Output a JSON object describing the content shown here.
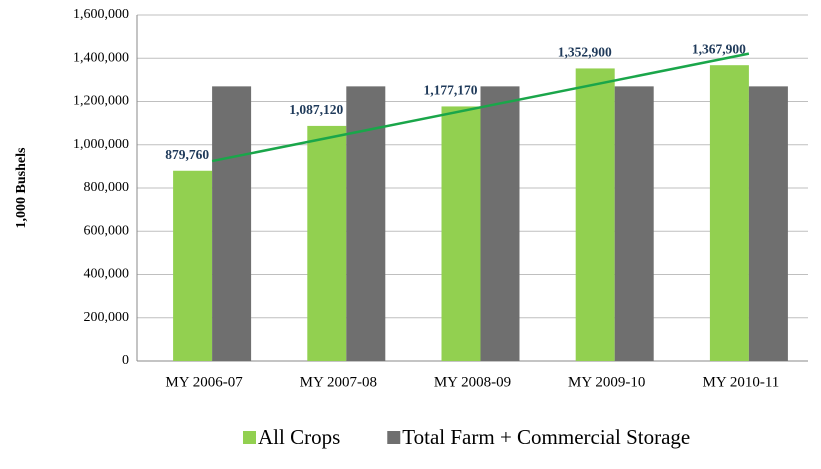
{
  "chart_data": {
    "type": "bar",
    "y_label": "1,000 Bushels",
    "categories": [
      "MY 2006-07",
      "MY 2007-08",
      "MY 2008-09",
      "MY 2009-10",
      "MY 2010-11"
    ],
    "series": [
      {
        "name": "All Crops",
        "color": "#92d050",
        "values": [
          879760,
          1087120,
          1177170,
          1352900,
          1367900
        ],
        "value_labels": [
          "879,760",
          "1,087,120",
          "1,177,170",
          "1,352,900",
          "1,367,900"
        ]
      },
      {
        "name": "Total Farm + Commercial Storage",
        "color": "#6f6f6f",
        "values": [
          1270000,
          1270000,
          1270000,
          1270000,
          1270000
        ]
      }
    ],
    "trendline": {
      "series": 0,
      "color": "#1aa64a"
    },
    "ylim": [
      0,
      1600000
    ],
    "yticks": [
      0,
      {
        "value": 200000,
        "label": "200,000"
      },
      {
        "value": 400000,
        "label": "400,000"
      },
      {
        "value": 600000,
        "label": "600,000"
      },
      {
        "value": 800000,
        "label": "800,000"
      },
      {
        "value": 1000000,
        "label": "1,000,000"
      },
      {
        "value": 1200000,
        "label": "1,200,000"
      },
      {
        "value": 1400000,
        "label": "1,400,000"
      },
      {
        "value": 1600000,
        "label": "1,600,000"
      }
    ],
    "grid": true
  }
}
